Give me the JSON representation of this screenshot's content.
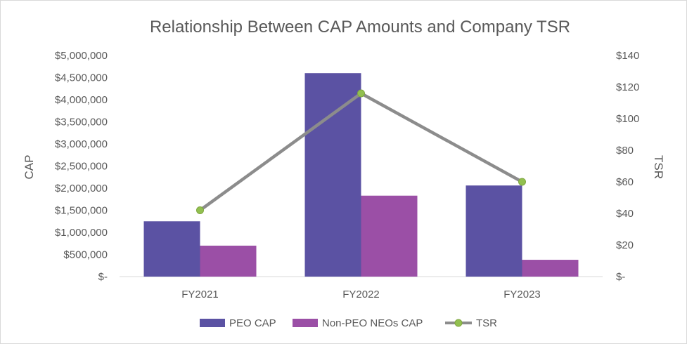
{
  "chart_data": {
    "type": "bar",
    "title": "Relationship Between CAP Amounts and Company TSR",
    "categories": [
      "FY2021",
      "FY2022",
      "FY2023"
    ],
    "series": [
      {
        "name": "PEO CAP",
        "type": "bar",
        "axis": "left",
        "color": "#5b52a3",
        "values": [
          1250000,
          4600000,
          2060000
        ]
      },
      {
        "name": "Non-PEO NEOs CAP",
        "type": "bar",
        "axis": "left",
        "color": "#9b4fa6",
        "values": [
          700000,
          1830000,
          380000
        ]
      },
      {
        "name": "TSR",
        "type": "line",
        "axis": "right",
        "color": "#8c8c8c",
        "marker_color": "#92c050",
        "values": [
          42,
          116,
          60
        ]
      }
    ],
    "ylabel": "CAP",
    "y2label": "TSR",
    "ylim": [
      0,
      5000000
    ],
    "y2lim": [
      0,
      140
    ],
    "yticks": [
      0,
      500000,
      1000000,
      1500000,
      2000000,
      2500000,
      3000000,
      3500000,
      4000000,
      4500000,
      5000000
    ],
    "yticklabels": [
      "$-",
      "$500,000",
      "$1,000,000",
      "$1,500,000",
      "$2,000,000",
      "$2,500,000",
      "$3,000,000",
      "$3,500,000",
      "$4,000,000",
      "$4,500,000",
      "$5,000,000"
    ],
    "y2ticks": [
      0,
      20,
      40,
      60,
      80,
      100,
      120,
      140
    ],
    "y2ticklabels": [
      "$-",
      "$20",
      "$40",
      "$60",
      "$80",
      "$100",
      "$120",
      "$140"
    ],
    "grid": false,
    "legend": "bottom"
  }
}
